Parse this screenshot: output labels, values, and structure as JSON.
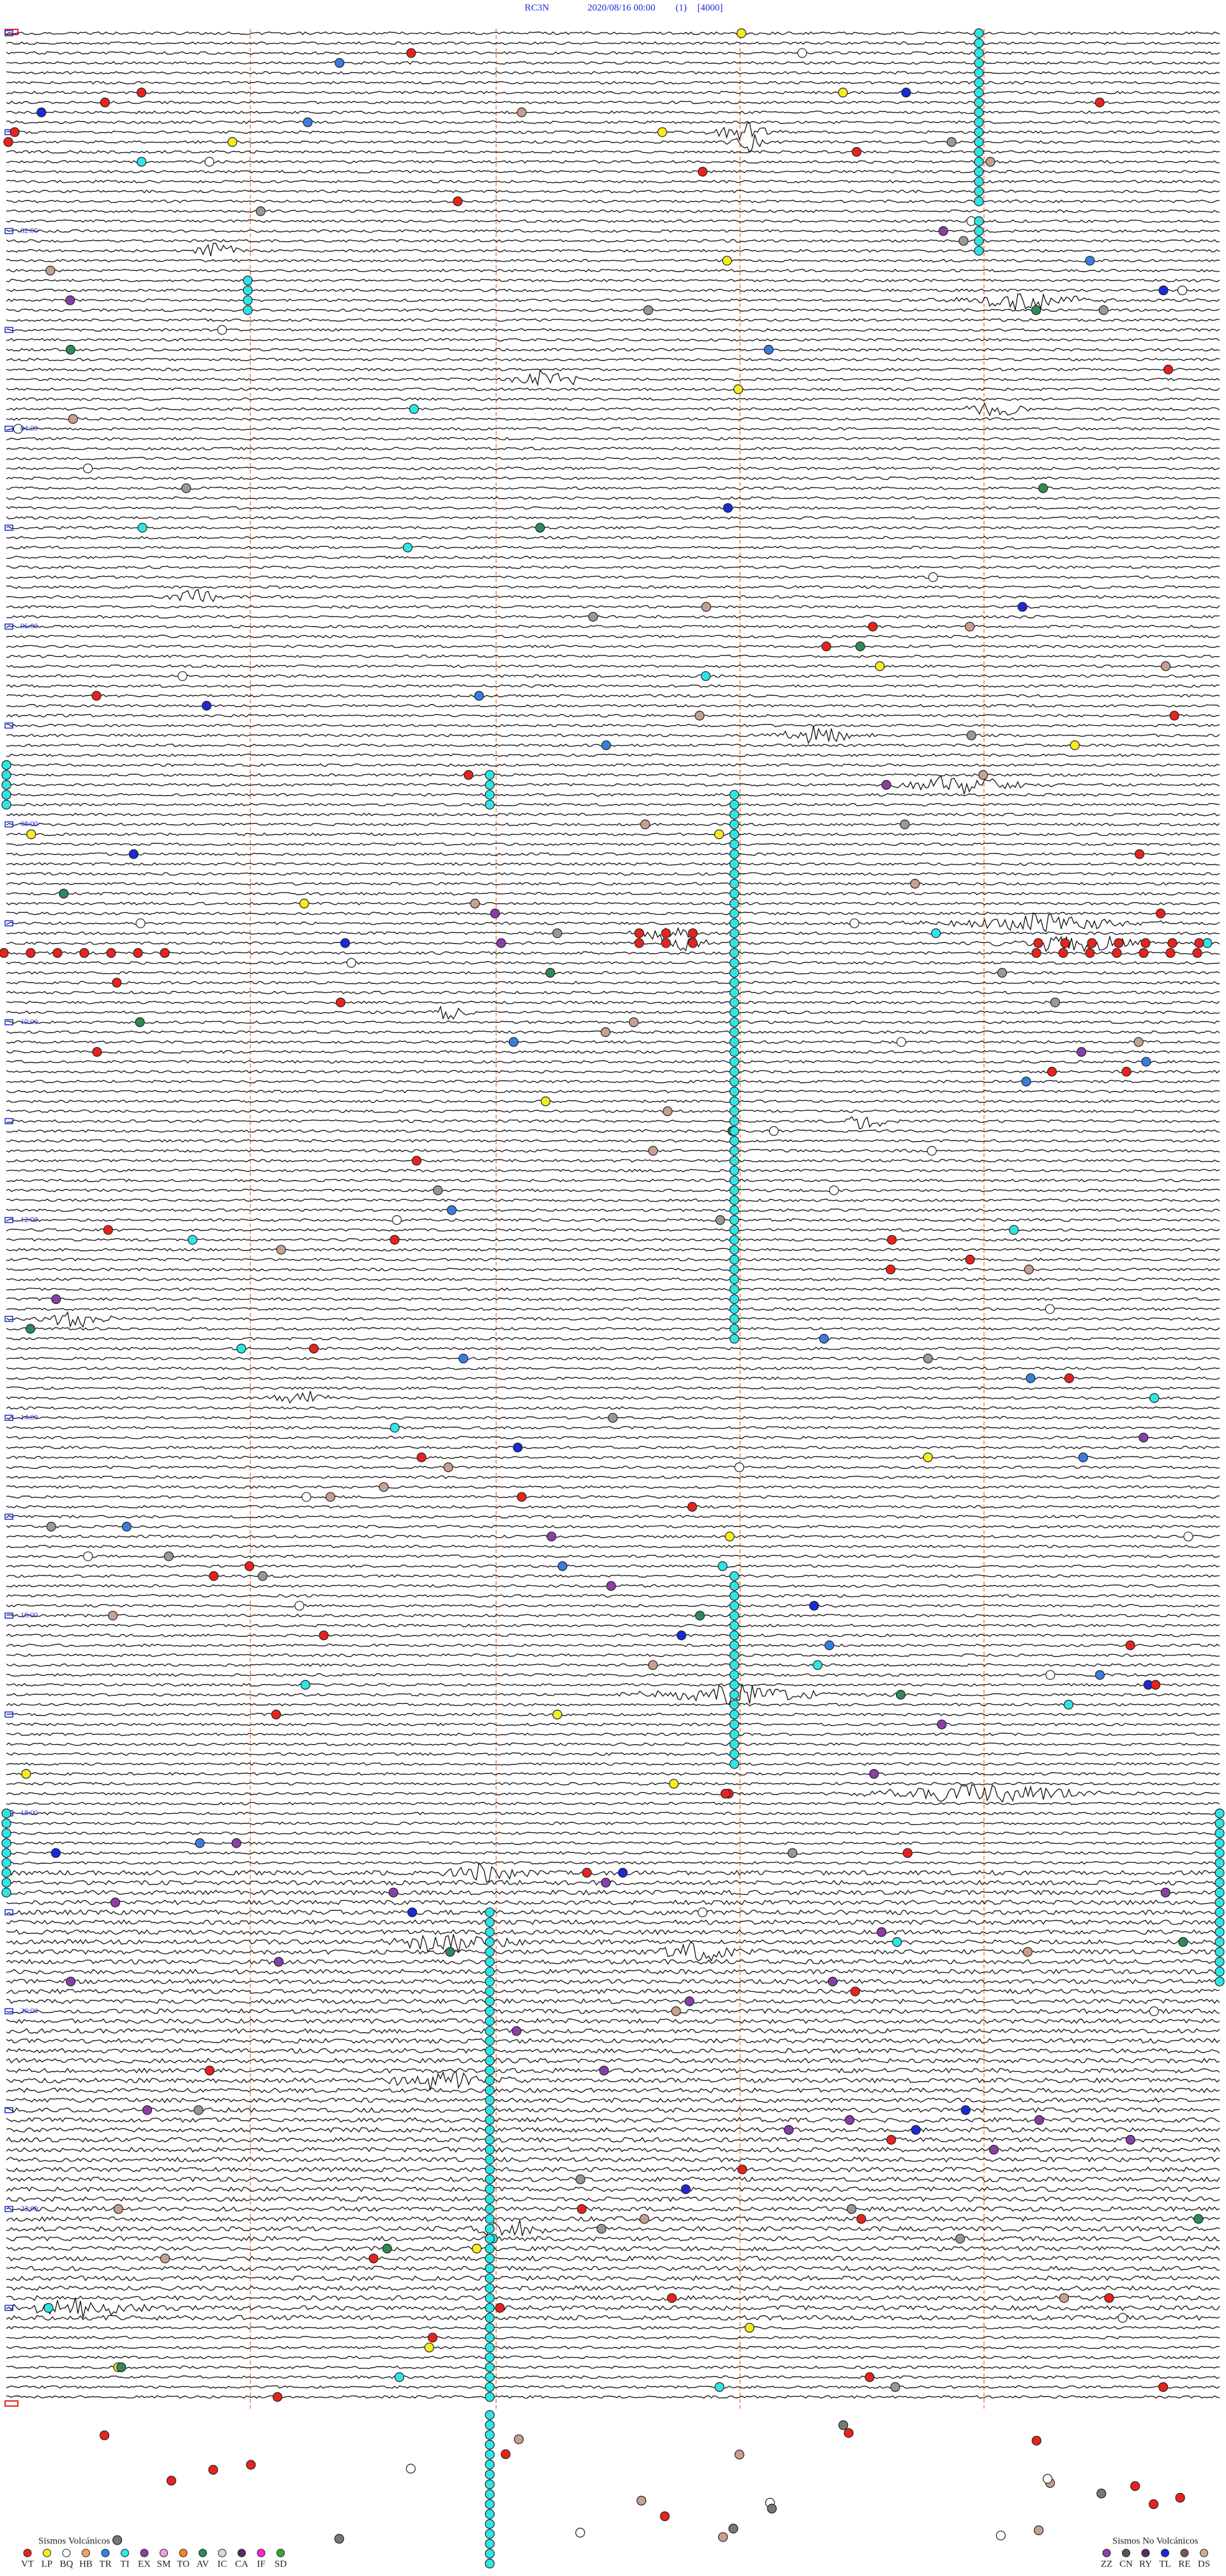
{
  "header": {
    "station": "RC3N",
    "datetime": "2020/08/16 00:00",
    "channel": "(1)",
    "scale": "[4000]"
  },
  "time_labels": [
    "02:00",
    "04:00",
    "06:00",
    "08:00",
    "10:00",
    "12:00",
    "14:00",
    "16:00",
    "18:00",
    "20:00",
    "22:00"
  ],
  "legend_volcanic": {
    "title": "Sismos Volcánicos",
    "items": [
      {
        "label": "VT",
        "color": "#e8231e"
      },
      {
        "label": "LP",
        "color": "#f7ec1f"
      },
      {
        "label": "BQ",
        "color": "#ffffff"
      },
      {
        "label": "HB",
        "color": "#f4a460"
      },
      {
        "label": "TR",
        "color": "#3a7de0"
      },
      {
        "label": "TI",
        "color": "#2ee6e6"
      },
      {
        "label": "EX",
        "color": "#8a3fa8"
      },
      {
        "label": "SM",
        "color": "#f2a0d8"
      },
      {
        "label": "TO",
        "color": "#f08a1c"
      },
      {
        "label": "AV",
        "color": "#2e8b57"
      },
      {
        "label": "IC",
        "color": "#d8d8d8"
      },
      {
        "label": "CA",
        "color": "#5a2a6a"
      },
      {
        "label": "IF",
        "color": "#ff22dd"
      },
      {
        "label": "SD",
        "color": "#33aa33"
      }
    ]
  },
  "legend_non_volcanic": {
    "title": "Sismos No Volcánicos",
    "items": [
      {
        "label": "ZZ",
        "color": "#8a3fa8"
      },
      {
        "label": "CN",
        "color": "#555555"
      },
      {
        "label": "RY",
        "color": "#5a2a6a"
      },
      {
        "label": "TL",
        "color": "#1a2ad8"
      },
      {
        "label": "RE",
        "color": "#7a5a50"
      },
      {
        "label": "DS",
        "color": "#d0a890"
      }
    ]
  }
}
